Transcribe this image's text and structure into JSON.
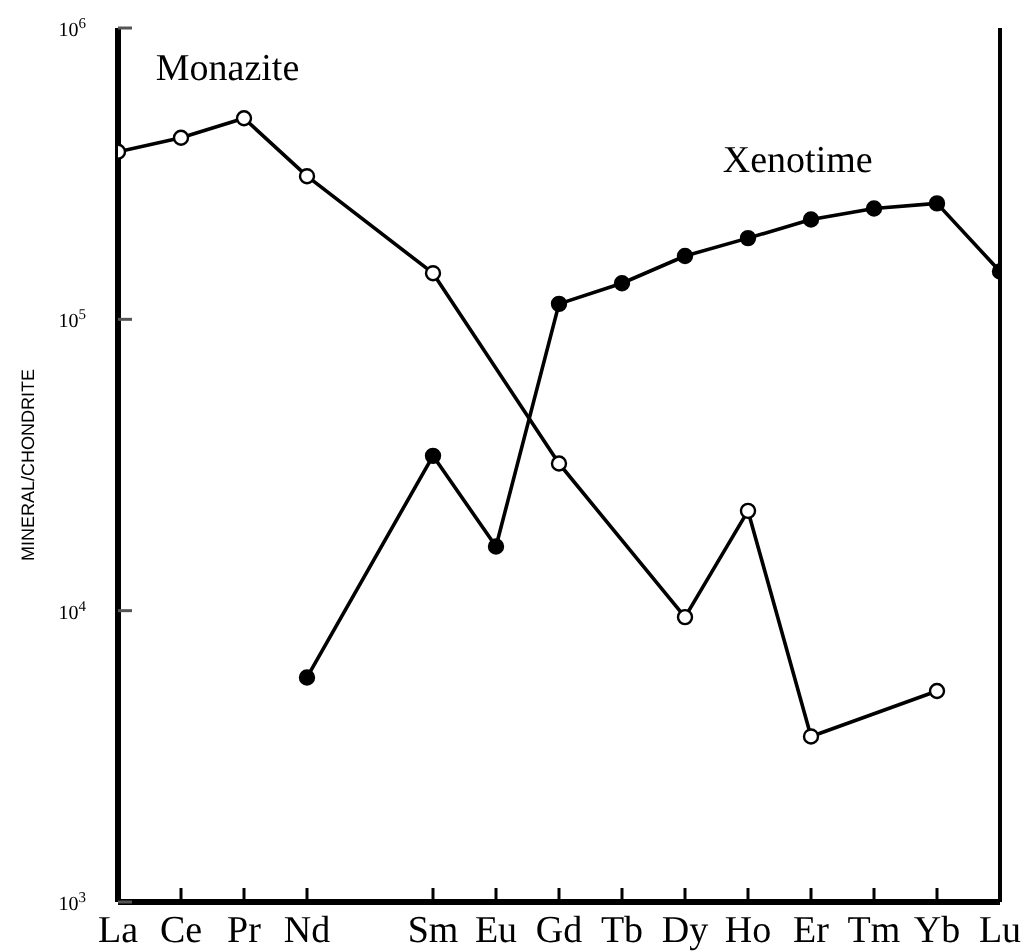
{
  "chart_data": {
    "type": "line",
    "ylabel": "MINERAL/CHONDRITE",
    "categories": [
      "La",
      "Ce",
      "Pr",
      "Nd",
      null,
      "Sm",
      "Eu",
      "Gd",
      "Tb",
      "Dy",
      "Ho",
      "Er",
      "Tm",
      "Yb",
      "Lu"
    ],
    "series": [
      {
        "name": "Monazite",
        "color": "#000000",
        "values": [
          376000,
          420000,
          490000,
          310000,
          null,
          144000,
          null,
          32000,
          null,
          9500,
          22000,
          3700,
          null,
          5300,
          null
        ]
      },
      {
        "name": "Xenotime",
        "color": "#000000",
        "values": [
          null,
          null,
          null,
          5900,
          null,
          34000,
          16600,
          113000,
          133000,
          165000,
          190000,
          220000,
          240000,
          250000,
          146000
        ]
      }
    ],
    "log": true,
    "ylim": [
      1000,
      1000000
    ],
    "yticks": [
      {
        "value": 1000,
        "label": "10$^{3}$"
      },
      {
        "value": 10000,
        "label": "10$^{4}$"
      },
      {
        "value": 100000,
        "label": "10$^{5}$"
      },
      {
        "value": 1000000,
        "label": "10$^{6}$"
      }
    ],
    "marker": "circle",
    "line_style": "solid",
    "grid": false
  }
}
